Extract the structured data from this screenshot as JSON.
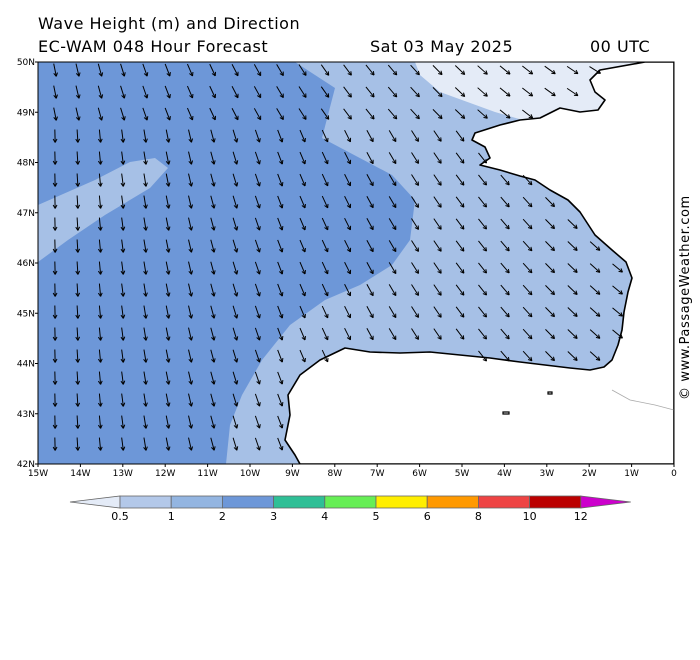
{
  "header": {
    "title": "Wave Height (m) and Direction",
    "model_line": "EC-WAM 048 Hour Forecast",
    "date": "Sat 03 May 2025",
    "hour": "00 UTC"
  },
  "credit": "© www.PassageWeather.com",
  "axes": {
    "lat_labels": [
      "50N",
      "49N",
      "48N",
      "47N",
      "46N",
      "45N",
      "44N",
      "43N",
      "42N"
    ],
    "lon_labels": [
      "15W",
      "14W",
      "13W",
      "12W",
      "11W",
      "10W",
      "9W",
      "8W",
      "7W",
      "6W",
      "5W",
      "4W",
      "3W",
      "2W",
      "1W",
      "0"
    ]
  },
  "legend": {
    "labels": [
      "0.5",
      "1",
      "2",
      "3",
      "4",
      "5",
      "6",
      "8",
      "10",
      "12"
    ],
    "colors": [
      "#e4ebf7",
      "#b3c8e9",
      "#93b5e1",
      "#6d97d8",
      "#2fbf96",
      "#66ee55",
      "#ffee00",
      "#ff9900",
      "#ee4444",
      "#bb0000",
      "#cc00cc"
    ]
  },
  "map": {
    "region": "Bay of Biscay",
    "lat_range": [
      42,
      50
    ],
    "lon_range": [
      -15,
      0
    ],
    "shade_colors": {
      "deep": "#6d97d8",
      "mid": "#a6c0e6",
      "light": "#e4ebf7",
      "land": "#ffffff"
    },
    "arrow_direction": "toward south / south-east",
    "legend_unit": "m"
  }
}
